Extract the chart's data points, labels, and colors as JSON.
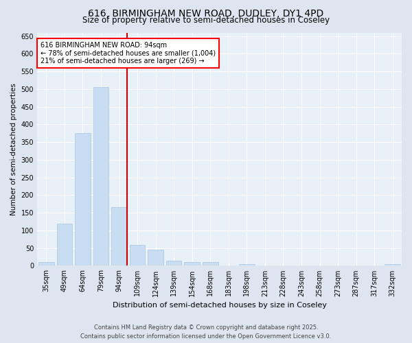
{
  "title1": "616, BIRMINGHAM NEW ROAD, DUDLEY, DY1 4PD",
  "title2": "Size of property relative to semi-detached houses in Coseley",
  "xlabel": "Distribution of semi-detached houses by size in Coseley",
  "ylabel": "Number of semi-detached properties",
  "footer1": "Contains HM Land Registry data © Crown copyright and database right 2025.",
  "footer2": "Contains public sector information licensed under the Open Government Licence v3.0.",
  "categories": [
    "35sqm",
    "49sqm",
    "64sqm",
    "79sqm",
    "94sqm",
    "109sqm",
    "124sqm",
    "139sqm",
    "154sqm",
    "168sqm",
    "183sqm",
    "198sqm",
    "213sqm",
    "228sqm",
    "243sqm",
    "258sqm",
    "273sqm",
    "287sqm",
    "317sqm",
    "332sqm"
  ],
  "values": [
    10,
    120,
    375,
    505,
    165,
    60,
    45,
    15,
    10,
    10,
    0,
    5,
    0,
    0,
    0,
    0,
    0,
    0,
    0,
    5
  ],
  "bar_color": "#c9ddf2",
  "bar_edge_color": "#a8c4e0",
  "property_line_index": 4,
  "annotation_text1": "616 BIRMINGHAM NEW ROAD: 94sqm",
  "annotation_text2": "← 78% of semi-detached houses are smaller (1,004)",
  "annotation_text3": "21% of semi-detached houses are larger (269) →",
  "vline_color": "#cc0000",
  "ylim": [
    0,
    660
  ],
  "yticks": [
    0,
    50,
    100,
    150,
    200,
    250,
    300,
    350,
    400,
    450,
    500,
    550,
    600,
    650
  ],
  "background_color": "#dde6f0",
  "plot_bg_color": "#e8f0f8",
  "title1_fontsize": 10,
  "title2_fontsize": 8.5,
  "xlabel_fontsize": 8,
  "ylabel_fontsize": 7.5,
  "tick_fontsize": 7,
  "footer_fontsize": 6,
  "ann_fontsize": 7
}
